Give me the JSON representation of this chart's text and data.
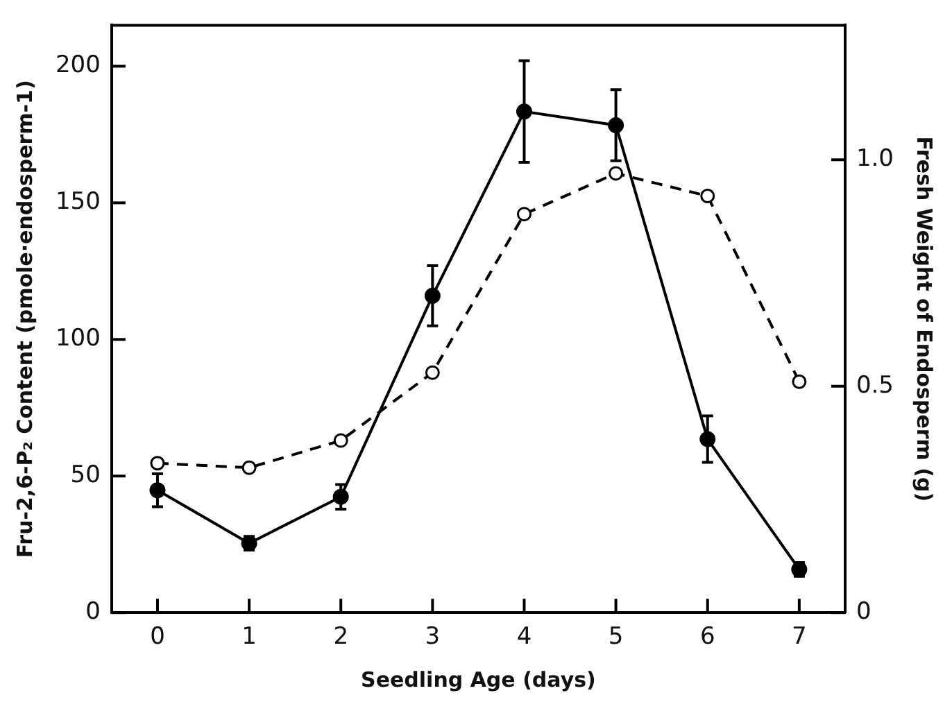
{
  "chart_data": {
    "type": "line",
    "xlabel": "Seedling Age (days)",
    "ylabel": "Fru-2,6-P₂ Content (pmole·endosperm-1)",
    "y2label": "Fresh Weight of Endosperm (g)",
    "x": [
      0,
      1,
      2,
      3,
      4,
      5,
      6,
      7
    ],
    "series": [
      {
        "color": "#000000",
        "values": [
          44.8,
          25.4,
          42.4,
          116,
          183.4,
          178.4,
          63.5,
          15.8
        ],
        "errors": [
          6,
          2.5,
          4.5,
          11,
          18.6,
          13,
          8.5,
          2.5
        ],
        "line_style": "solid",
        "marker": "circle",
        "axis": "y"
      },
      {
        "color": "#000000",
        "values": [
          0.33,
          0.32,
          0.38,
          0.53,
          0.88,
          0.97,
          0.92,
          0.51
        ],
        "line_style": "dashed",
        "marker": "circle",
        "axis": "y2"
      }
    ],
    "xlim": [
      -0.5,
      7.5
    ],
    "xticks": [
      0,
      1,
      2,
      3,
      4,
      5,
      6,
      7
    ],
    "ylim": [
      0,
      215
    ],
    "yticks": [
      0,
      50,
      100,
      150,
      200
    ],
    "y2lim": [
      0,
      1.297
    ],
    "y2ticks": [
      0,
      {
        "value": 0.5,
        "label": "0.5"
      },
      {
        "value": 1,
        "label": "1.0"
      }
    ],
    "grid": false,
    "legend": false
  }
}
